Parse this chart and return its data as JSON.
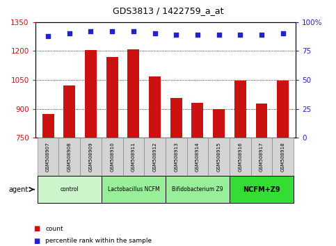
{
  "title": "GDS3813 / 1422759_a_at",
  "samples": [
    "GSM508907",
    "GSM508908",
    "GSM508909",
    "GSM508910",
    "GSM508911",
    "GSM508912",
    "GSM508913",
    "GSM508914",
    "GSM508915",
    "GSM508916",
    "GSM508917",
    "GSM508918"
  ],
  "counts": [
    873,
    1020,
    1205,
    1170,
    1208,
    1068,
    955,
    930,
    898,
    1045,
    928,
    1045
  ],
  "percentile_ranks": [
    88,
    90,
    92,
    92,
    92,
    90,
    89,
    89,
    89,
    89,
    89,
    90
  ],
  "groups": [
    {
      "label": "control",
      "start": 0,
      "end": 3,
      "color": "#ccf5cc"
    },
    {
      "label": "Lactobacillus NCFM",
      "start": 3,
      "end": 6,
      "color": "#99ee99"
    },
    {
      "label": "Bifidobacterium Z9",
      "start": 6,
      "end": 9,
      "color": "#99ee99"
    },
    {
      "label": "NCFM+Z9",
      "start": 9,
      "end": 12,
      "color": "#33dd33"
    }
  ],
  "ylim_left": [
    750,
    1350
  ],
  "ylim_right": [
    0,
    100
  ],
  "yticks_left": [
    750,
    900,
    1050,
    1200,
    1350
  ],
  "yticks_right": [
    0,
    25,
    50,
    75,
    100
  ],
  "bar_color": "#cc1111",
  "dot_color": "#2222cc",
  "bar_width": 0.55,
  "grid_color": "black",
  "tick_label_color_left": "#cc1111",
  "tick_label_color_right": "#2222cc",
  "legend_items": [
    {
      "label": "count",
      "color": "#cc1111"
    },
    {
      "label": "percentile rank within the sample",
      "color": "#2222cc"
    }
  ],
  "agent_label": "agent"
}
